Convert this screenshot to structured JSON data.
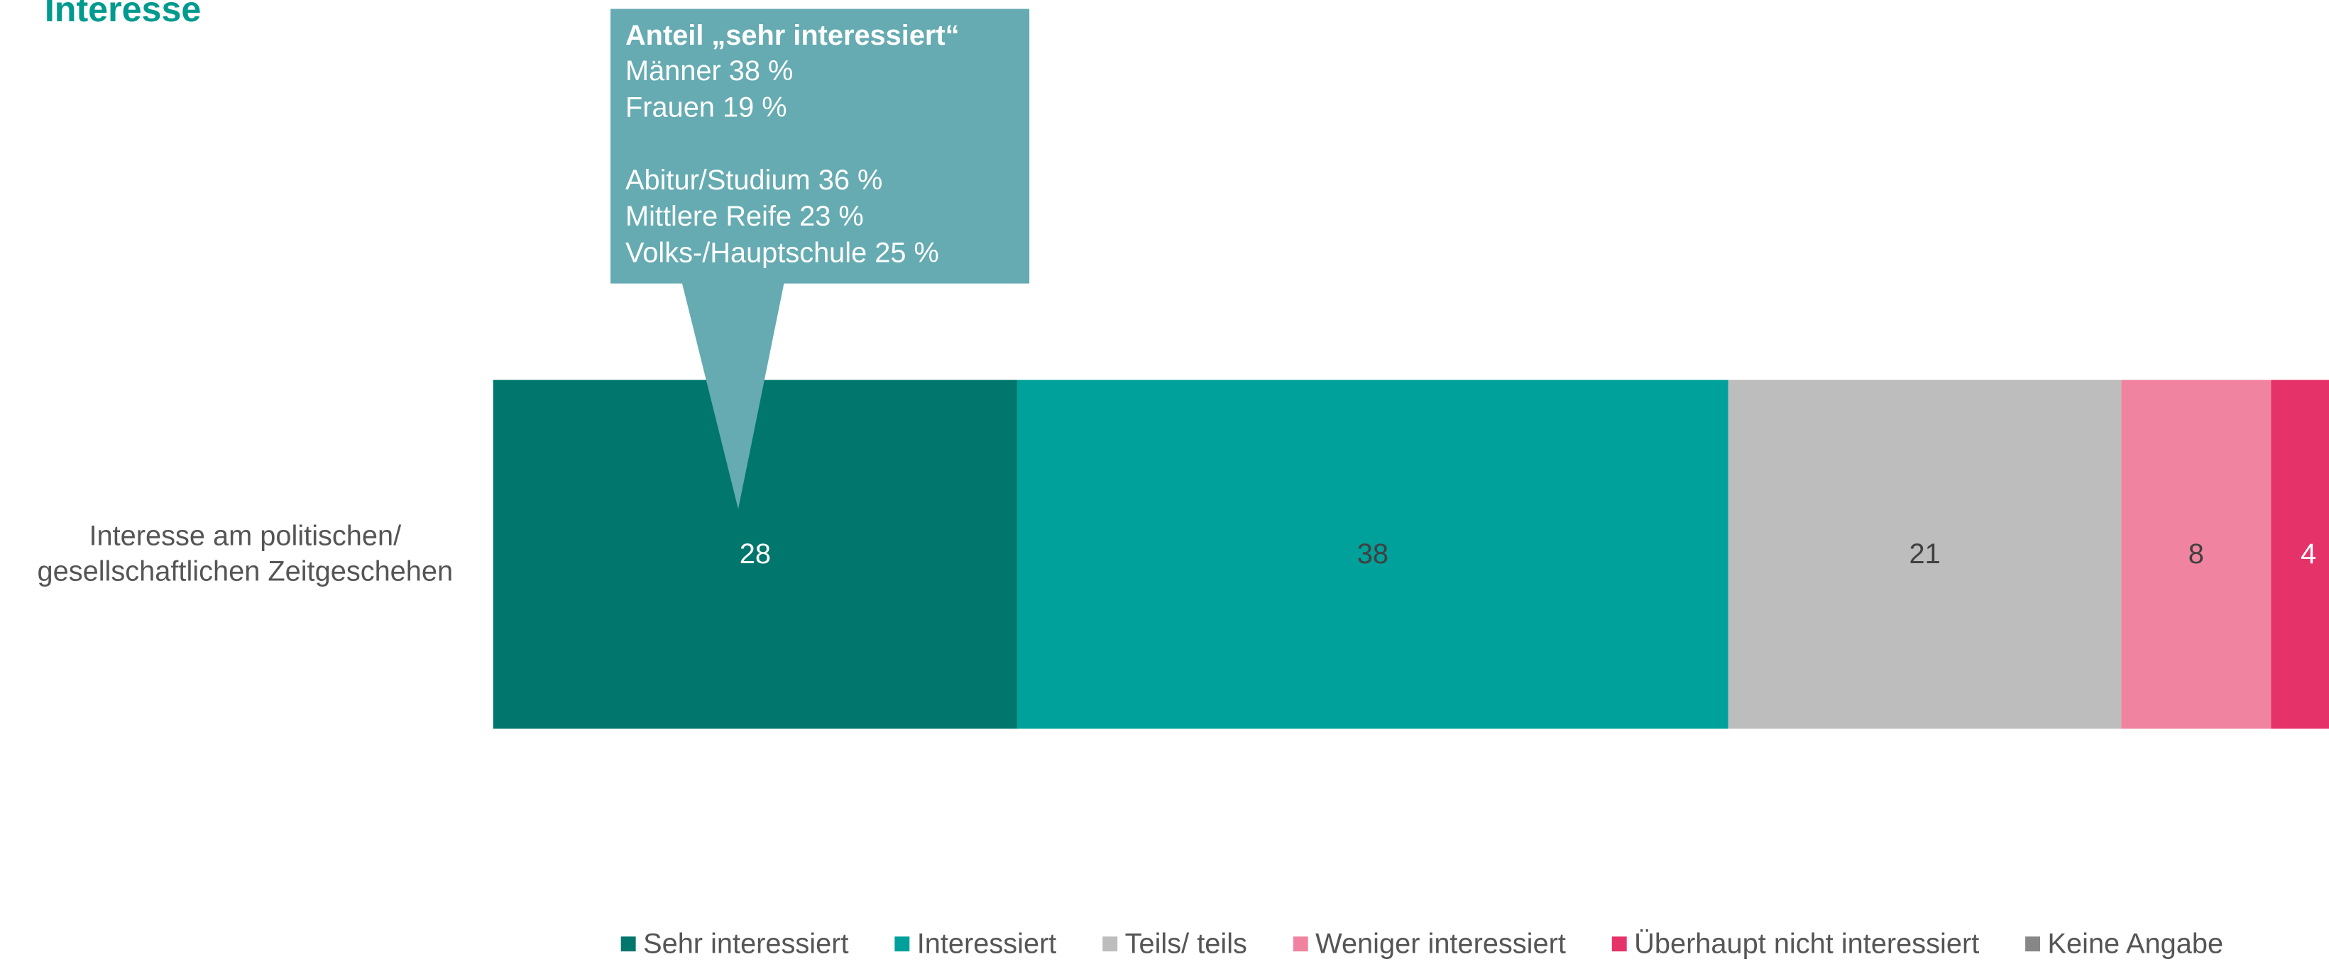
{
  "chart_data": {
    "type": "stacked_bar_horizontal",
    "title": "Interesse",
    "categories": [
      "Interesse am politischen/\ngesellschaftlichen Zeitgeschehen"
    ],
    "xlim": [
      0,
      100
    ],
    "series": [
      {
        "name": "Sehr interessiert",
        "color": "#00766c",
        "label_color": "#ffffff",
        "values": [
          28
        ]
      },
      {
        "name": "Interessiert",
        "color": "#00a19a",
        "label_color": "#404040",
        "values": [
          38
        ]
      },
      {
        "name": "Teils/ teils",
        "color": "#bdbdbd",
        "label_color": "#404040",
        "values": [
          21
        ]
      },
      {
        "name": "Weniger interessiert",
        "color": "#f084a0",
        "label_color": "#404040",
        "values": [
          8
        ]
      },
      {
        "name": "Überhaupt nicht interessiert",
        "color": "#e5336a",
        "label_color": "#ffffff",
        "values": [
          4
        ]
      },
      {
        "name": "Keine Angabe",
        "color": "#878787",
        "label_color": "#ffffff",
        "values": [
          null
        ]
      }
    ],
    "annotation": {
      "title": "Anteil „sehr interessiert“",
      "groups": [
        [
          "Männer 38 %",
          "Frauen 19 %"
        ],
        [
          "Abitur/Studium 36 %",
          "Mittlere Reife 23 %",
          "Volks-/Hauptschule 25 %"
        ]
      ],
      "color": "#65abb1"
    },
    "legend": "bottom"
  }
}
